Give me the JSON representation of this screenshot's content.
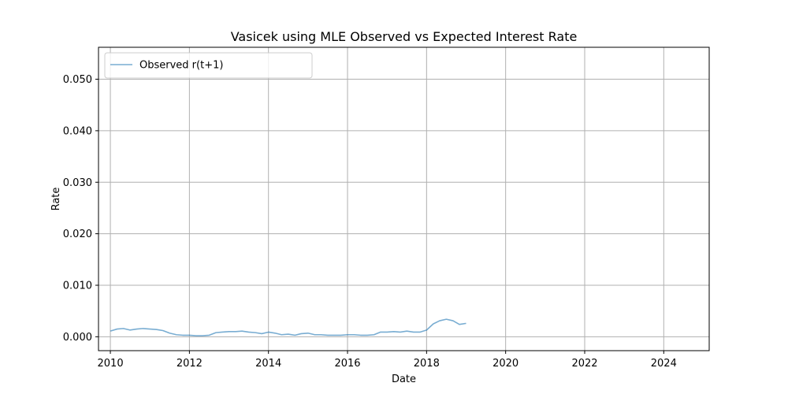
{
  "chart_data": {
    "type": "line",
    "title": "Vasicek using MLE Observed vs Expected Interest Rate",
    "xlabel": "Date",
    "ylabel": "Rate",
    "xlim": [
      2009.7,
      2025.15
    ],
    "ylim": [
      -0.0027,
      0.0562
    ],
    "x_ticks": [
      2010,
      2012,
      2014,
      2016,
      2018,
      2020,
      2022,
      2024
    ],
    "x_tick_labels": [
      "2010",
      "2012",
      "2014",
      "2016",
      "2018",
      "2020",
      "2022",
      "2024"
    ],
    "y_ticks": [
      0,
      0.01,
      0.02,
      0.03,
      0.04,
      0.05
    ],
    "y_tick_labels": [
      "0.000",
      "0.010",
      "0.020",
      "0.030",
      "0.040",
      "0.050"
    ],
    "grid": true,
    "legend": "upper left",
    "series": [
      {
        "name": "Observed r(t+1)",
        "color": "#1f77b4",
        "opacity": 0.6,
        "points": [
          [
            2010.0,
            0.0011
          ],
          [
            2010.17,
            0.0015
          ],
          [
            2010.33,
            0.0016
          ],
          [
            2010.5,
            0.0013
          ],
          [
            2010.67,
            0.0015
          ],
          [
            2010.83,
            0.0016
          ],
          [
            2011.0,
            0.0015
          ],
          [
            2011.17,
            0.0014
          ],
          [
            2011.33,
            0.0012
          ],
          [
            2011.5,
            0.0007
          ],
          [
            2011.67,
            0.0004
          ],
          [
            2011.83,
            0.0003
          ],
          [
            2012.0,
            0.0003
          ],
          [
            2012.17,
            0.0002
          ],
          [
            2012.33,
            0.0002
          ],
          [
            2012.5,
            0.0003
          ],
          [
            2012.67,
            0.0008
          ],
          [
            2012.83,
            0.0009
          ],
          [
            2013.0,
            0.001
          ],
          [
            2013.17,
            0.001
          ],
          [
            2013.33,
            0.0011
          ],
          [
            2013.5,
            0.0009
          ],
          [
            2013.67,
            0.0008
          ],
          [
            2013.83,
            0.0006
          ],
          [
            2014.0,
            0.0009
          ],
          [
            2014.17,
            0.0007
          ],
          [
            2014.33,
            0.0004
          ],
          [
            2014.5,
            0.0005
          ],
          [
            2014.67,
            0.0003
          ],
          [
            2014.83,
            0.0006
          ],
          [
            2015.0,
            0.0007
          ],
          [
            2015.17,
            0.0004
          ],
          [
            2015.33,
            0.0004
          ],
          [
            2015.5,
            0.0003
          ],
          [
            2015.67,
            0.0003
          ],
          [
            2015.83,
            0.0003
          ],
          [
            2016.0,
            0.0004
          ],
          [
            2016.17,
            0.0004
          ],
          [
            2016.33,
            0.0003
          ],
          [
            2016.5,
            0.0003
          ],
          [
            2016.67,
            0.0004
          ],
          [
            2016.83,
            0.0009
          ],
          [
            2017.0,
            0.0009
          ],
          [
            2017.17,
            0.001
          ],
          [
            2017.33,
            0.0009
          ],
          [
            2017.5,
            0.0011
          ],
          [
            2017.67,
            0.0009
          ],
          [
            2017.83,
            0.0009
          ],
          [
            2018.0,
            0.0013
          ],
          [
            2018.17,
            0.0025
          ],
          [
            2018.33,
            0.0031
          ],
          [
            2018.5,
            0.0034
          ],
          [
            2018.67,
            0.0031
          ],
          [
            2018.83,
            0.0024
          ],
          [
            2019.0,
            0.0026
          ]
        ]
      }
    ]
  }
}
